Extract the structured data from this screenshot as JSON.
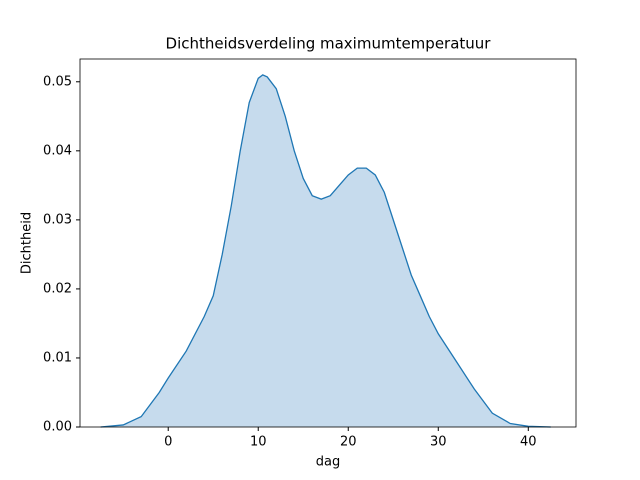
{
  "chart_data": {
    "type": "area",
    "title": "Dichtheidsverdeling maximumtemperatuur",
    "xlabel": "dag",
    "ylabel": "Dichtheid",
    "x": [
      -7.5,
      -5,
      -3,
      -1,
      0,
      2,
      4,
      5,
      6,
      7,
      8,
      9,
      10,
      10.5,
      11,
      12,
      13,
      14,
      15,
      16,
      17,
      18,
      19,
      20,
      21,
      22,
      23,
      24,
      25,
      26,
      27,
      28,
      29,
      30,
      32,
      34,
      36,
      38,
      40,
      42.5
    ],
    "values": [
      0,
      0.0003,
      0.0015,
      0.005,
      0.0071,
      0.011,
      0.016,
      0.019,
      0.025,
      0.032,
      0.04,
      0.047,
      0.0505,
      0.051,
      0.0507,
      0.049,
      0.045,
      0.04,
      0.036,
      0.0335,
      0.033,
      0.0335,
      0.035,
      0.0365,
      0.0375,
      0.0375,
      0.0365,
      0.034,
      0.03,
      0.026,
      0.022,
      0.019,
      0.016,
      0.0135,
      0.0095,
      0.0055,
      0.002,
      0.0005,
      0.0001,
      0
    ],
    "color": "#1f77b4",
    "fill": "#c6dbed",
    "xlim": [
      -9.8,
      45.3
    ],
    "xticks": [
      0,
      10,
      20,
      30,
      40
    ],
    "ylim": [
      0,
      0.0533
    ],
    "yticks": [
      {
        "value": 0,
        "label": "0.00"
      },
      {
        "value": 0.01,
        "label": "0.01"
      },
      {
        "value": 0.02,
        "label": "0.02"
      },
      {
        "value": 0.03,
        "label": "0.03"
      },
      {
        "value": 0.04,
        "label": "0.04"
      },
      {
        "value": 0.05,
        "label": "0.05"
      }
    ]
  }
}
